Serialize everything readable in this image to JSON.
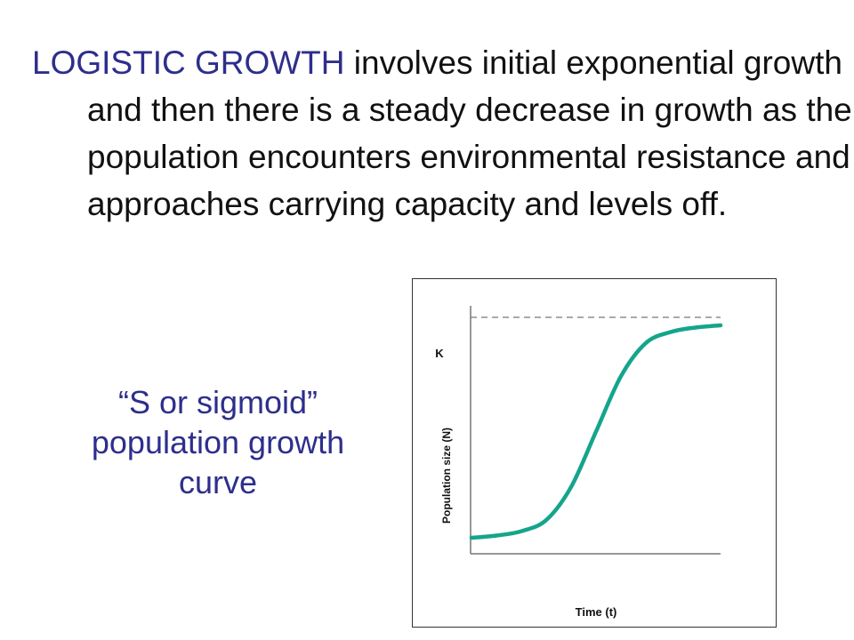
{
  "text": {
    "term": "LOGISTIC GROWTH",
    "body": " involves initial exponential growth and then there is a steady decrease in growth as the population encounters environmental resistance and approaches carrying capacity and levels off.",
    "caption": "“S or sigmoid” population growth curve"
  },
  "colors": {
    "term": "#2e2e8c",
    "curve": "#14a58c",
    "axis": "#777777",
    "dashed": "#777777"
  },
  "chart_data": {
    "type": "line",
    "title": "",
    "xlabel": "Time (t)",
    "ylabel": "Population size (N)",
    "ytick_labels": [
      "K"
    ],
    "carrying_capacity_line": {
      "label": "K",
      "style": "dashed"
    },
    "x": [
      0,
      0.1,
      0.2,
      0.3,
      0.4,
      0.5,
      0.6,
      0.7,
      0.8,
      0.9,
      1.0
    ],
    "series": [
      {
        "values": [
          0.02,
          0.03,
          0.05,
          0.1,
          0.25,
          0.5,
          0.75,
          0.9,
          0.95,
          0.97,
          0.98
        ]
      }
    ],
    "xlim": [
      0,
      1
    ],
    "ylim": [
      0,
      1
    ]
  }
}
